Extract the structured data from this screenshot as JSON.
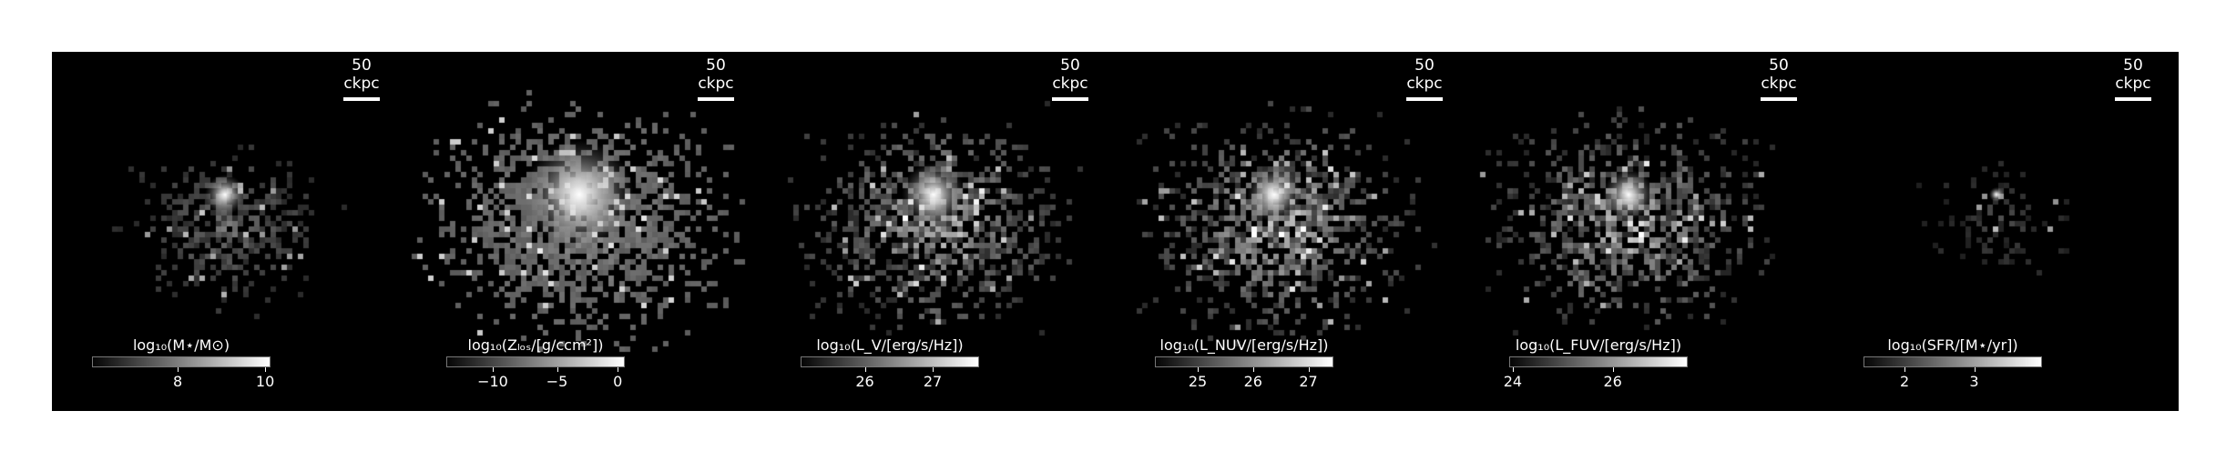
{
  "panels": [
    {
      "scalebar_label": "50 ckpc",
      "colorbar_label": "log₁₀(M⋆/M⊙)",
      "ticks": [
        {
          "label": "8",
          "frac": 0.48
        },
        {
          "label": "10",
          "frac": 0.97
        }
      ],
      "density": "stellar-mass",
      "icon": "stellar-mass-map"
    },
    {
      "scalebar_label": "50 ckpc",
      "colorbar_label": "log₁₀(Zₗₒₛ/[g/ccm²])",
      "ticks": [
        {
          "label": "−10",
          "frac": 0.26
        },
        {
          "label": "−5",
          "frac": 0.62
        },
        {
          "label": "0",
          "frac": 0.96
        }
      ],
      "density": "metal-column",
      "icon": "metal-column-map"
    },
    {
      "scalebar_label": "50 ckpc",
      "colorbar_label": "log₁₀(L_V/[erg/s/Hz])",
      "ticks": [
        {
          "label": "26",
          "frac": 0.36
        },
        {
          "label": "27",
          "frac": 0.74
        }
      ],
      "density": "luminosity-v",
      "icon": "v-band-luminosity-map"
    },
    {
      "scalebar_label": "50 ckpc",
      "colorbar_label": "log₁₀(L_NUV/[erg/s/Hz])",
      "ticks": [
        {
          "label": "25",
          "frac": 0.24
        },
        {
          "label": "26",
          "frac": 0.55
        },
        {
          "label": "27",
          "frac": 0.86
        }
      ],
      "density": "luminosity-nuv",
      "icon": "nuv-luminosity-map"
    },
    {
      "scalebar_label": "50 ckpc",
      "colorbar_label": "log₁₀(L_FUV/[erg/s/Hz])",
      "ticks": [
        {
          "label": "24",
          "frac": 0.02
        },
        {
          "label": "26",
          "frac": 0.58
        }
      ],
      "density": "luminosity-fuv",
      "icon": "fuv-luminosity-map"
    },
    {
      "scalebar_label": "50 ckpc",
      "colorbar_label": "log₁₀(SFR/[M⋆/yr])",
      "ticks": [
        {
          "label": "2",
          "frac": 0.23
        },
        {
          "label": "3",
          "frac": 0.62
        }
      ],
      "density": "sfr",
      "icon": "star-formation-rate-map"
    }
  ]
}
